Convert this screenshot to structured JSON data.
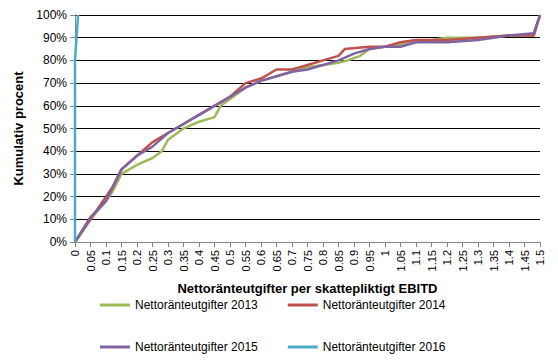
{
  "chart_data": {
    "type": "line",
    "x_label": "Nettoränteutgifter per skattepliktigt EBITD",
    "y_label": "Kumulativ procent",
    "xlim": [
      0,
      1.5
    ],
    "xticks": [
      0,
      0.05,
      0.1,
      0.15,
      0.2,
      0.25,
      0.3,
      0.35,
      0.4,
      0.45,
      0.5,
      0.55,
      0.6,
      0.65,
      0.7,
      0.75,
      0.8,
      0.85,
      0.9,
      0.95,
      1,
      1.05,
      1.1,
      1.15,
      1.2,
      1.25,
      1.3,
      1.35,
      1.4,
      1.45,
      1.5
    ],
    "ylim": [
      0,
      100
    ],
    "yticks": [
      {
        "value": 0,
        "label": "0%"
      },
      {
        "value": 10,
        "label": "10%"
      },
      {
        "value": 20,
        "label": "20%"
      },
      {
        "value": 30,
        "label": "30%"
      },
      {
        "value": 40,
        "label": "40%"
      },
      {
        "value": 50,
        "label": "50%"
      },
      {
        "value": 60,
        "label": "60%"
      },
      {
        "value": 70,
        "label": "70%"
      },
      {
        "value": 80,
        "label": "80%"
      },
      {
        "value": 90,
        "label": "90%"
      },
      {
        "value": 100,
        "label": "100%"
      }
    ],
    "grid": true,
    "legend": "bottom",
    "series": [
      {
        "name": "Nettoränteutgifter 2013",
        "color": "#9bbb59",
        "x": [
          0,
          0.05,
          0.1,
          0.12,
          0.15,
          0.2,
          0.25,
          0.28,
          0.3,
          0.35,
          0.4,
          0.45,
          0.47,
          0.5,
          0.55,
          0.6,
          0.65,
          0.7,
          0.75,
          0.8,
          0.85,
          0.88,
          0.92,
          0.95,
          1.0,
          1.05,
          1.1,
          1.2,
          1.3,
          1.4,
          1.48,
          1.5
        ],
        "values": [
          0,
          10,
          18,
          22,
          30,
          34,
          37,
          40,
          45,
          50,
          53,
          55,
          60,
          63,
          68,
          71,
          73,
          75,
          77,
          78,
          79,
          80,
          82,
          85,
          86,
          87,
          88,
          90,
          90,
          91,
          91,
          100
        ]
      },
      {
        "name": "Nettoränteutgifter 2014",
        "color": "#c0504d",
        "x": [
          0,
          0.05,
          0.1,
          0.12,
          0.15,
          0.2,
          0.25,
          0.3,
          0.35,
          0.4,
          0.45,
          0.5,
          0.55,
          0.6,
          0.65,
          0.7,
          0.75,
          0.8,
          0.85,
          0.87,
          0.95,
          1.0,
          1.05,
          1.1,
          1.2,
          1.3,
          1.4,
          1.48,
          1.5
        ],
        "values": [
          0,
          10,
          20,
          24,
          32,
          38,
          44,
          48,
          52,
          56,
          60,
          64,
          70,
          72,
          76,
          76,
          78,
          80,
          82,
          85,
          86,
          86,
          88,
          89,
          89,
          90,
          91,
          91,
          100
        ]
      },
      {
        "name": "Nettoränteutgifter 2015",
        "color": "#8064a2",
        "x": [
          0,
          0.05,
          0.1,
          0.15,
          0.2,
          0.25,
          0.3,
          0.35,
          0.4,
          0.45,
          0.5,
          0.55,
          0.6,
          0.65,
          0.7,
          0.75,
          0.8,
          0.85,
          0.9,
          0.95,
          1.0,
          1.05,
          1.1,
          1.2,
          1.3,
          1.4,
          1.48,
          1.5
        ],
        "values": [
          0,
          11,
          18,
          32,
          38,
          42,
          48,
          52,
          56,
          60,
          64,
          68,
          71,
          73,
          75,
          76,
          78,
          80,
          83,
          85,
          86,
          86,
          88,
          88,
          89,
          91,
          92,
          100
        ]
      },
      {
        "name": "Nettoränteutgifter 2016",
        "color": "#4bacc6",
        "x": [
          0,
          0,
          0.005,
          0.01
        ],
        "values": [
          0,
          80,
          90,
          100
        ]
      }
    ]
  }
}
